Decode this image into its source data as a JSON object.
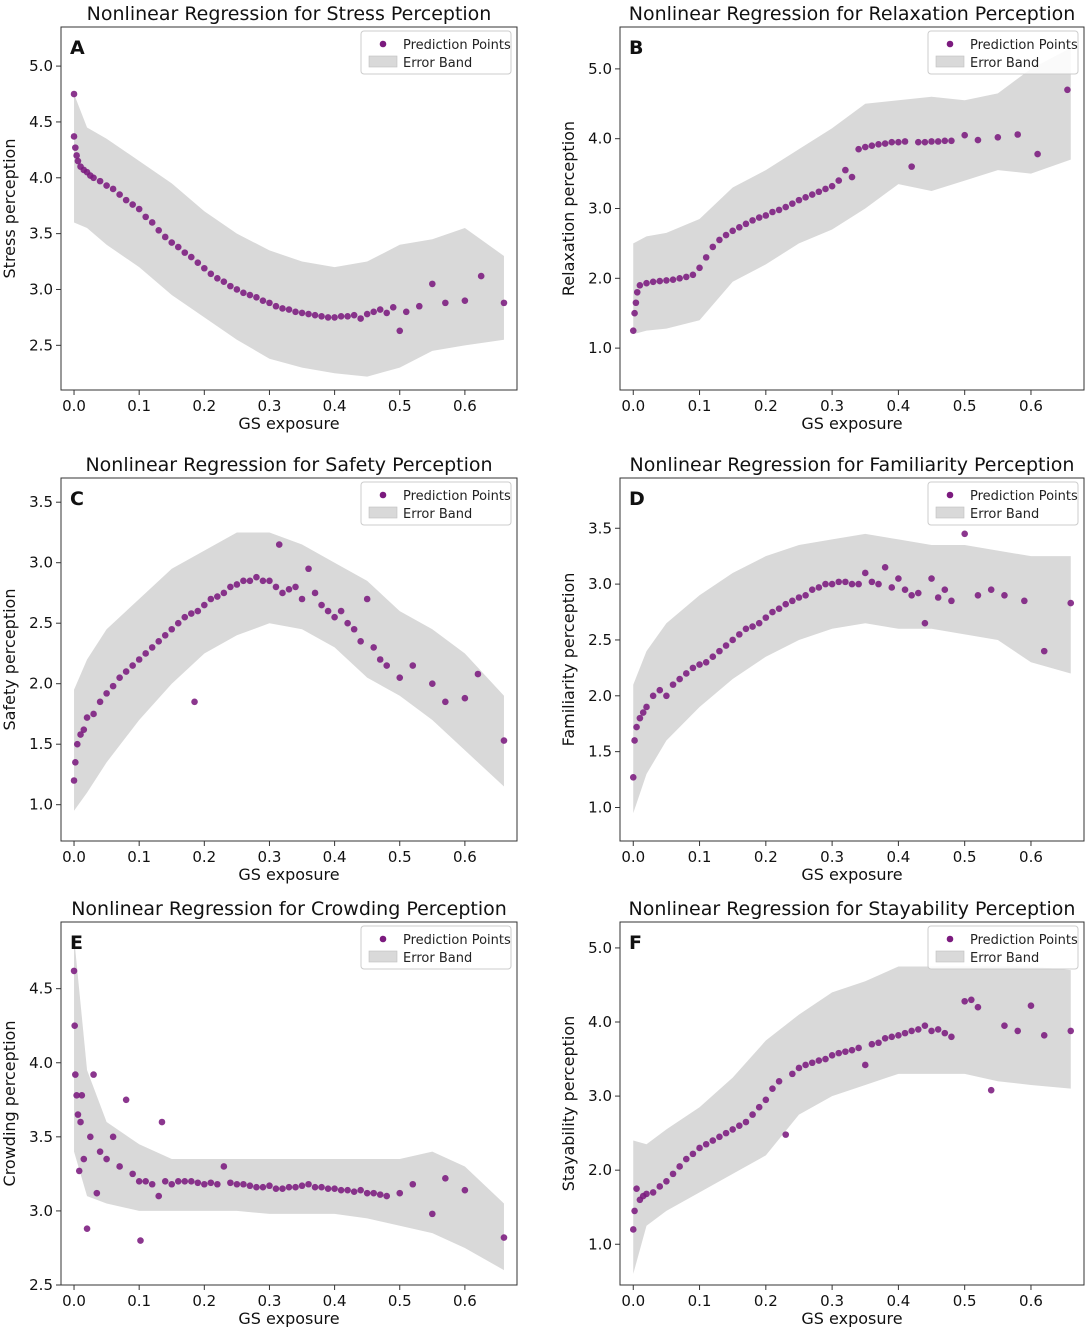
{
  "figure": {
    "legend_labels": {
      "points": "Prediction Points",
      "band": "Error Band"
    },
    "colors": {
      "points": "#7b1a7e",
      "band": "#d9d9d9",
      "axes": "#333333"
    }
  },
  "chart_data": [
    {
      "type": "scatter",
      "panel": "A",
      "title": "Nonlinear Regression for Stress Perception",
      "xlabel": "GS exposure",
      "ylabel": "Stress perception",
      "xlim": [
        -0.02,
        0.68
      ],
      "ylim": [
        2.1,
        5.35
      ],
      "xticks": [
        0.0,
        0.1,
        0.2,
        0.3,
        0.4,
        0.5,
        0.6
      ],
      "yticks": [
        2.5,
        3.0,
        3.5,
        4.0,
        4.5,
        5.0
      ],
      "legend": "top-right",
      "points_x": [
        0.0,
        0.0,
        0.002,
        0.004,
        0.006,
        0.01,
        0.015,
        0.02,
        0.025,
        0.03,
        0.04,
        0.05,
        0.06,
        0.07,
        0.08,
        0.09,
        0.1,
        0.11,
        0.12,
        0.13,
        0.14,
        0.15,
        0.16,
        0.17,
        0.18,
        0.19,
        0.2,
        0.21,
        0.22,
        0.23,
        0.24,
        0.25,
        0.26,
        0.27,
        0.28,
        0.29,
        0.3,
        0.31,
        0.32,
        0.33,
        0.34,
        0.35,
        0.36,
        0.37,
        0.38,
        0.39,
        0.4,
        0.41,
        0.42,
        0.43,
        0.44,
        0.45,
        0.46,
        0.47,
        0.48,
        0.49,
        0.5,
        0.51,
        0.53,
        0.55,
        0.57,
        0.6,
        0.625,
        0.66
      ],
      "points_y": [
        4.75,
        4.37,
        4.27,
        4.2,
        4.15,
        4.1,
        4.07,
        4.05,
        4.02,
        4.0,
        3.97,
        3.93,
        3.9,
        3.85,
        3.8,
        3.76,
        3.72,
        3.65,
        3.6,
        3.53,
        3.47,
        3.42,
        3.38,
        3.33,
        3.29,
        3.24,
        3.19,
        3.14,
        3.1,
        3.07,
        3.03,
        3.0,
        2.97,
        2.95,
        2.93,
        2.9,
        2.88,
        2.85,
        2.83,
        2.82,
        2.8,
        2.79,
        2.78,
        2.77,
        2.76,
        2.75,
        2.75,
        2.76,
        2.76,
        2.77,
        2.74,
        2.78,
        2.8,
        2.82,
        2.79,
        2.84,
        2.63,
        2.8,
        2.85,
        3.05,
        2.88,
        2.9,
        3.12,
        2.88
      ],
      "band_x": [
        0.0,
        0.02,
        0.05,
        0.1,
        0.15,
        0.2,
        0.25,
        0.3,
        0.35,
        0.4,
        0.45,
        0.5,
        0.55,
        0.6,
        0.66
      ],
      "band_low": [
        3.6,
        3.55,
        3.4,
        3.2,
        2.95,
        2.75,
        2.55,
        2.38,
        2.3,
        2.25,
        2.22,
        2.3,
        2.45,
        2.5,
        2.55
      ],
      "band_high": [
        4.75,
        4.45,
        4.35,
        4.15,
        3.95,
        3.7,
        3.5,
        3.35,
        3.25,
        3.2,
        3.25,
        3.4,
        3.45,
        3.55,
        3.3
      ]
    },
    {
      "type": "scatter",
      "panel": "B",
      "title": "Nonlinear Regression for Relaxation Perception",
      "xlabel": "GS exposure",
      "ylabel": "Relaxation perception",
      "xlim": [
        -0.02,
        0.68
      ],
      "ylim": [
        0.4,
        5.6
      ],
      "xticks": [
        0.0,
        0.1,
        0.2,
        0.3,
        0.4,
        0.5,
        0.6
      ],
      "yticks": [
        1.0,
        2.0,
        3.0,
        4.0,
        5.0
      ],
      "legend": "top-right",
      "points_x": [
        0.0,
        0.002,
        0.004,
        0.006,
        0.01,
        0.02,
        0.03,
        0.04,
        0.05,
        0.06,
        0.07,
        0.08,
        0.09,
        0.1,
        0.11,
        0.12,
        0.13,
        0.14,
        0.15,
        0.16,
        0.17,
        0.18,
        0.19,
        0.2,
        0.21,
        0.22,
        0.23,
        0.24,
        0.25,
        0.26,
        0.27,
        0.28,
        0.29,
        0.3,
        0.31,
        0.32,
        0.33,
        0.34,
        0.35,
        0.36,
        0.37,
        0.38,
        0.39,
        0.4,
        0.41,
        0.42,
        0.43,
        0.44,
        0.45,
        0.46,
        0.47,
        0.48,
        0.5,
        0.52,
        0.55,
        0.58,
        0.61,
        0.655
      ],
      "points_y": [
        1.25,
        1.5,
        1.65,
        1.8,
        1.9,
        1.93,
        1.95,
        1.96,
        1.97,
        1.98,
        2.0,
        2.02,
        2.05,
        2.15,
        2.3,
        2.45,
        2.55,
        2.62,
        2.68,
        2.73,
        2.78,
        2.83,
        2.87,
        2.9,
        2.95,
        2.98,
        3.02,
        3.07,
        3.12,
        3.16,
        3.2,
        3.24,
        3.28,
        3.32,
        3.4,
        3.55,
        3.45,
        3.85,
        3.88,
        3.9,
        3.92,
        3.93,
        3.95,
        3.95,
        3.96,
        3.6,
        3.95,
        3.95,
        3.96,
        3.96,
        3.97,
        3.97,
        4.05,
        3.98,
        4.02,
        4.06,
        3.78,
        4.7
      ],
      "band_x": [
        0.0,
        0.02,
        0.05,
        0.1,
        0.15,
        0.2,
        0.25,
        0.3,
        0.35,
        0.4,
        0.45,
        0.5,
        0.55,
        0.6,
        0.66
      ],
      "band_low": [
        1.2,
        1.25,
        1.28,
        1.4,
        1.95,
        2.2,
        2.5,
        2.7,
        3.0,
        3.35,
        3.25,
        3.4,
        3.55,
        3.5,
        3.7
      ],
      "band_high": [
        2.5,
        2.6,
        2.65,
        2.85,
        3.3,
        3.55,
        3.85,
        4.15,
        4.5,
        4.55,
        4.6,
        4.55,
        4.65,
        5.0,
        5.3
      ]
    },
    {
      "type": "scatter",
      "panel": "C",
      "title": "Nonlinear Regression for Safety Perception",
      "xlabel": "GS exposure",
      "ylabel": "Safety perception",
      "xlim": [
        -0.02,
        0.68
      ],
      "ylim": [
        0.7,
        3.7
      ],
      "xticks": [
        0.0,
        0.1,
        0.2,
        0.3,
        0.4,
        0.5,
        0.6
      ],
      "yticks": [
        1.0,
        1.5,
        2.0,
        2.5,
        3.0,
        3.5
      ],
      "legend": "top-right",
      "points_x": [
        0.0,
        0.002,
        0.005,
        0.01,
        0.015,
        0.02,
        0.03,
        0.04,
        0.05,
        0.06,
        0.07,
        0.08,
        0.09,
        0.1,
        0.11,
        0.12,
        0.13,
        0.14,
        0.15,
        0.16,
        0.17,
        0.18,
        0.185,
        0.19,
        0.2,
        0.21,
        0.22,
        0.23,
        0.24,
        0.25,
        0.26,
        0.27,
        0.28,
        0.29,
        0.3,
        0.31,
        0.315,
        0.32,
        0.33,
        0.34,
        0.35,
        0.36,
        0.37,
        0.38,
        0.39,
        0.4,
        0.41,
        0.42,
        0.43,
        0.44,
        0.45,
        0.46,
        0.47,
        0.48,
        0.5,
        0.52,
        0.55,
        0.57,
        0.6,
        0.62,
        0.66
      ],
      "points_y": [
        1.2,
        1.35,
        1.5,
        1.58,
        1.62,
        1.72,
        1.75,
        1.85,
        1.92,
        1.98,
        2.05,
        2.1,
        2.15,
        2.2,
        2.25,
        2.3,
        2.35,
        2.4,
        2.45,
        2.5,
        2.55,
        2.58,
        1.85,
        2.6,
        2.65,
        2.7,
        2.72,
        2.75,
        2.8,
        2.82,
        2.85,
        2.85,
        2.88,
        2.85,
        2.85,
        2.8,
        3.15,
        2.75,
        2.78,
        2.8,
        2.7,
        2.95,
        2.75,
        2.65,
        2.6,
        2.55,
        2.6,
        2.5,
        2.45,
        2.35,
        2.7,
        2.3,
        2.2,
        2.15,
        2.05,
        2.15,
        2.0,
        1.85,
        1.88,
        2.08,
        1.53
      ],
      "band_x": [
        0.0,
        0.02,
        0.05,
        0.1,
        0.15,
        0.2,
        0.25,
        0.3,
        0.35,
        0.4,
        0.45,
        0.5,
        0.55,
        0.6,
        0.66
      ],
      "band_low": [
        0.95,
        1.1,
        1.35,
        1.7,
        2.0,
        2.25,
        2.4,
        2.5,
        2.45,
        2.3,
        2.05,
        1.9,
        1.7,
        1.45,
        1.15
      ],
      "band_high": [
        1.95,
        2.2,
        2.45,
        2.7,
        2.95,
        3.1,
        3.25,
        3.25,
        3.15,
        3.0,
        2.85,
        2.6,
        2.45,
        2.25,
        1.9
      ]
    },
    {
      "type": "scatter",
      "panel": "D",
      "title": "Nonlinear Regression for Familiarity Perception",
      "xlabel": "GS exposure",
      "ylabel": "Familiarity perception",
      "xlim": [
        -0.02,
        0.68
      ],
      "ylim": [
        0.7,
        3.95
      ],
      "xticks": [
        0.0,
        0.1,
        0.2,
        0.3,
        0.4,
        0.5,
        0.6
      ],
      "yticks": [
        1.0,
        1.5,
        2.0,
        2.5,
        3.0,
        3.5
      ],
      "legend": "top-right",
      "points_x": [
        0.0,
        0.002,
        0.005,
        0.01,
        0.015,
        0.02,
        0.03,
        0.04,
        0.05,
        0.06,
        0.07,
        0.08,
        0.09,
        0.1,
        0.11,
        0.12,
        0.13,
        0.14,
        0.15,
        0.16,
        0.17,
        0.18,
        0.19,
        0.2,
        0.21,
        0.22,
        0.23,
        0.24,
        0.25,
        0.26,
        0.27,
        0.28,
        0.29,
        0.3,
        0.31,
        0.32,
        0.33,
        0.34,
        0.35,
        0.36,
        0.37,
        0.38,
        0.39,
        0.4,
        0.41,
        0.42,
        0.43,
        0.44,
        0.45,
        0.46,
        0.47,
        0.48,
        0.5,
        0.52,
        0.54,
        0.56,
        0.59,
        0.62,
        0.66
      ],
      "points_y": [
        1.27,
        1.6,
        1.72,
        1.8,
        1.85,
        1.9,
        2.0,
        2.05,
        2.0,
        2.1,
        2.15,
        2.2,
        2.25,
        2.28,
        2.3,
        2.35,
        2.4,
        2.45,
        2.5,
        2.55,
        2.6,
        2.62,
        2.65,
        2.7,
        2.75,
        2.78,
        2.82,
        2.85,
        2.88,
        2.9,
        2.95,
        2.97,
        3.0,
        3.0,
        3.02,
        3.02,
        3.0,
        3.0,
        3.1,
        3.02,
        3.0,
        3.15,
        2.97,
        3.05,
        2.95,
        2.9,
        2.92,
        2.65,
        3.05,
        2.88,
        2.95,
        2.85,
        3.45,
        2.9,
        2.95,
        2.9,
        2.85,
        2.4,
        2.83
      ],
      "band_x": [
        0.0,
        0.02,
        0.05,
        0.1,
        0.15,
        0.2,
        0.25,
        0.3,
        0.35,
        0.4,
        0.45,
        0.5,
        0.55,
        0.6,
        0.66
      ],
      "band_low": [
        0.95,
        1.3,
        1.6,
        1.9,
        2.15,
        2.35,
        2.5,
        2.6,
        2.65,
        2.6,
        2.6,
        2.55,
        2.5,
        2.3,
        2.2
      ],
      "band_high": [
        2.1,
        2.4,
        2.65,
        2.9,
        3.1,
        3.25,
        3.35,
        3.4,
        3.45,
        3.4,
        3.35,
        3.35,
        3.3,
        3.25,
        3.25
      ]
    },
    {
      "type": "scatter",
      "panel": "E",
      "title": "Nonlinear Regression for Crowding Perception",
      "xlabel": "GS exposure",
      "ylabel": "Crowding perception",
      "xlim": [
        -0.02,
        0.68
      ],
      "ylim": [
        2.5,
        4.95
      ],
      "xticks": [
        0.0,
        0.1,
        0.2,
        0.3,
        0.4,
        0.5,
        0.6
      ],
      "yticks": [
        2.5,
        3.0,
        3.5,
        4.0,
        4.5
      ],
      "legend": "top-right",
      "points_x": [
        0.0,
        0.001,
        0.002,
        0.004,
        0.006,
        0.008,
        0.01,
        0.012,
        0.015,
        0.02,
        0.025,
        0.03,
        0.035,
        0.04,
        0.05,
        0.06,
        0.07,
        0.08,
        0.09,
        0.1,
        0.102,
        0.11,
        0.12,
        0.13,
        0.135,
        0.14,
        0.15,
        0.16,
        0.17,
        0.18,
        0.19,
        0.2,
        0.21,
        0.22,
        0.23,
        0.24,
        0.25,
        0.26,
        0.27,
        0.28,
        0.29,
        0.3,
        0.31,
        0.32,
        0.33,
        0.34,
        0.35,
        0.36,
        0.37,
        0.38,
        0.39,
        0.4,
        0.41,
        0.42,
        0.43,
        0.44,
        0.45,
        0.46,
        0.47,
        0.48,
        0.5,
        0.52,
        0.55,
        0.57,
        0.6,
        0.66
      ],
      "points_y": [
        4.62,
        4.25,
        3.92,
        3.78,
        3.65,
        3.27,
        3.6,
        3.78,
        3.35,
        2.88,
        3.5,
        3.92,
        3.12,
        3.4,
        3.35,
        3.5,
        3.3,
        3.75,
        3.25,
        3.2,
        2.8,
        3.2,
        3.18,
        3.1,
        3.6,
        3.2,
        3.18,
        3.2,
        3.2,
        3.2,
        3.19,
        3.18,
        3.19,
        3.18,
        3.3,
        3.19,
        3.18,
        3.18,
        3.17,
        3.16,
        3.16,
        3.17,
        3.15,
        3.15,
        3.16,
        3.16,
        3.17,
        3.18,
        3.16,
        3.16,
        3.15,
        3.15,
        3.14,
        3.14,
        3.13,
        3.14,
        3.12,
        3.12,
        3.11,
        3.1,
        3.12,
        3.18,
        2.98,
        3.22,
        3.14,
        2.82
      ],
      "band_x": [
        0.0,
        0.02,
        0.05,
        0.1,
        0.15,
        0.2,
        0.25,
        0.3,
        0.35,
        0.4,
        0.45,
        0.5,
        0.55,
        0.6,
        0.66
      ],
      "band_low": [
        3.4,
        3.1,
        3.05,
        3.0,
        3.0,
        3.0,
        3.0,
        2.98,
        2.98,
        2.98,
        2.95,
        2.9,
        2.85,
        2.75,
        2.6
      ],
      "band_high": [
        4.85,
        3.95,
        3.6,
        3.45,
        3.35,
        3.35,
        3.35,
        3.35,
        3.35,
        3.35,
        3.35,
        3.35,
        3.4,
        3.3,
        3.05
      ]
    },
    {
      "type": "scatter",
      "panel": "F",
      "title": "Nonlinear Regression for Stayability Perception",
      "xlabel": "GS exposure",
      "ylabel": "Stayability perception",
      "xlim": [
        -0.02,
        0.68
      ],
      "ylim": [
        0.45,
        5.35
      ],
      "xticks": [
        0.0,
        0.1,
        0.2,
        0.3,
        0.4,
        0.5,
        0.6
      ],
      "yticks": [
        1.0,
        2.0,
        3.0,
        4.0,
        5.0
      ],
      "legend": "top-right",
      "points_x": [
        0.0,
        0.002,
        0.005,
        0.01,
        0.015,
        0.02,
        0.03,
        0.04,
        0.05,
        0.06,
        0.07,
        0.08,
        0.09,
        0.1,
        0.11,
        0.12,
        0.13,
        0.14,
        0.15,
        0.16,
        0.17,
        0.18,
        0.19,
        0.2,
        0.21,
        0.22,
        0.23,
        0.24,
        0.25,
        0.26,
        0.27,
        0.28,
        0.29,
        0.3,
        0.31,
        0.32,
        0.33,
        0.34,
        0.35,
        0.36,
        0.37,
        0.38,
        0.39,
        0.4,
        0.41,
        0.42,
        0.43,
        0.44,
        0.45,
        0.46,
        0.47,
        0.48,
        0.5,
        0.51,
        0.52,
        0.54,
        0.56,
        0.58,
        0.6,
        0.62,
        0.66
      ],
      "points_y": [
        1.2,
        1.45,
        1.75,
        1.6,
        1.65,
        1.68,
        1.7,
        1.78,
        1.85,
        1.95,
        2.05,
        2.15,
        2.22,
        2.3,
        2.35,
        2.4,
        2.45,
        2.5,
        2.55,
        2.6,
        2.65,
        2.75,
        2.85,
        2.95,
        3.1,
        3.2,
        2.48,
        3.3,
        3.38,
        3.42,
        3.45,
        3.48,
        3.5,
        3.55,
        3.58,
        3.6,
        3.62,
        3.65,
        3.42,
        3.7,
        3.72,
        3.78,
        3.8,
        3.82,
        3.85,
        3.88,
        3.9,
        3.95,
        3.88,
        3.9,
        3.85,
        3.8,
        4.28,
        4.3,
        4.2,
        3.08,
        3.95,
        3.88,
        4.22,
        3.82,
        3.88
      ],
      "band_x": [
        0.0,
        0.02,
        0.05,
        0.1,
        0.15,
        0.2,
        0.25,
        0.3,
        0.35,
        0.4,
        0.45,
        0.5,
        0.55,
        0.6,
        0.66
      ],
      "band_low": [
        0.6,
        1.25,
        1.45,
        1.7,
        1.95,
        2.2,
        2.75,
        3.0,
        3.15,
        3.3,
        3.3,
        3.3,
        3.2,
        3.15,
        3.1
      ],
      "band_high": [
        2.4,
        2.35,
        2.55,
        2.85,
        3.25,
        3.75,
        4.1,
        4.4,
        4.55,
        4.75,
        4.75,
        4.75,
        4.75,
        4.75,
        4.7
      ]
    }
  ]
}
